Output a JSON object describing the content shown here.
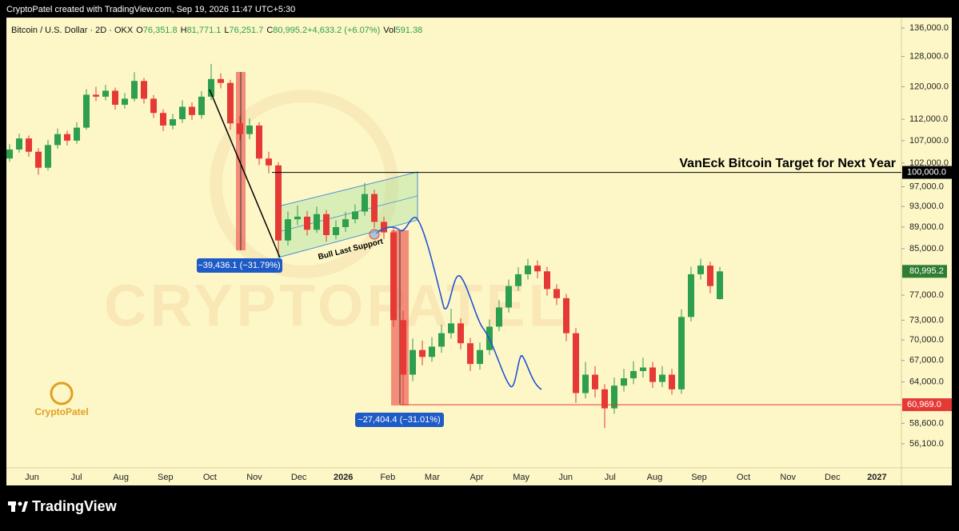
{
  "header": {
    "credit": "CryptoPatel created with TradingView.com, Sep 19, 2026 11:47 UTC+5:30",
    "brand": "TradingView"
  },
  "chart_data": {
    "type": "candlestick",
    "title": "Bitcoin / U.S. Dollar · 2D · OKX",
    "legend_fields": [
      {
        "key": "O",
        "value": "76,351.8"
      },
      {
        "key": "H",
        "value": "81,771.1"
      },
      {
        "key": "L",
        "value": "76,251.7"
      },
      {
        "key": "C",
        "value": "80,995.2"
      },
      {
        "key": "",
        "value": "+4,633.2 (+6.07%)"
      },
      {
        "key": "Vol",
        "value": "591.38"
      }
    ],
    "log_scale": true,
    "grid": false,
    "up_color": "#2e9e4f",
    "down_color": "#e53935",
    "ylim": [
      53300,
      139060
    ],
    "yticks": [
      {
        "value": 136000,
        "label": "136,000.0"
      },
      {
        "value": 128000,
        "label": "128,000.0"
      },
      {
        "value": 120000,
        "label": "120,000.0"
      },
      {
        "value": 112000,
        "label": "112,000.0"
      },
      {
        "value": 107000,
        "label": "107,000.0"
      },
      {
        "value": 102000,
        "label": "102,000.0"
      },
      {
        "value": 97000,
        "label": "97,000.0"
      },
      {
        "value": 93000,
        "label": "93,000.0"
      },
      {
        "value": 89000,
        "label": "89,000.0"
      },
      {
        "value": 85000,
        "label": "85,000.0"
      },
      {
        "value": 77000,
        "label": "77,000.0"
      },
      {
        "value": 73000,
        "label": "73,000.0"
      },
      {
        "value": 70000,
        "label": "70,000.0"
      },
      {
        "value": 67000,
        "label": "67,000.0"
      },
      {
        "value": 64000,
        "label": "64,000.0"
      },
      {
        "value": 58600,
        "label": "58,600.0"
      },
      {
        "value": 56100,
        "label": "56,100.0"
      }
    ],
    "categories": [
      "Jun",
      "Jul",
      "Aug",
      "Sep",
      "Oct",
      "Nov",
      "Dec",
      "2026",
      "Feb",
      "Mar",
      "Apr",
      "May",
      "Jun",
      "Jul",
      "Aug",
      "Sep",
      "Oct",
      "Nov",
      "Dec",
      "2027"
    ],
    "candles": [
      [
        103000,
        106200,
        102300,
        105000
      ],
      [
        105000,
        108600,
        104300,
        107500
      ],
      [
        107500,
        108200,
        103400,
        104500
      ],
      [
        104500,
        105300,
        99500,
        101000
      ],
      [
        101000,
        107200,
        100400,
        106000
      ],
      [
        106000,
        109800,
        105200,
        108500
      ],
      [
        108500,
        109300,
        105900,
        107000
      ],
      [
        107000,
        111300,
        106300,
        110000
      ],
      [
        110000,
        119400,
        109500,
        118000
      ],
      [
        118000,
        120000,
        116400,
        117500
      ],
      [
        117500,
        120500,
        116600,
        119000
      ],
      [
        119000,
        119800,
        114300,
        115500
      ],
      [
        115500,
        118400,
        114600,
        117000
      ],
      [
        117000,
        123800,
        116300,
        121500
      ],
      [
        121500,
        122300,
        115800,
        117000
      ],
      [
        117000,
        117900,
        112300,
        113500
      ],
      [
        113500,
        114400,
        109200,
        110500
      ],
      [
        110500,
        113300,
        109600,
        112000
      ],
      [
        112000,
        116600,
        111100,
        115000
      ],
      [
        115000,
        116100,
        111800,
        113000
      ],
      [
        113000,
        118900,
        112100,
        117500
      ],
      [
        117500,
        126000,
        116600,
        122000
      ],
      [
        122000,
        123500,
        119600,
        121000
      ],
      [
        121000,
        121800,
        109500,
        111000
      ],
      [
        111000,
        112700,
        107000,
        108500
      ],
      [
        108500,
        112200,
        107300,
        110500
      ],
      [
        110500,
        111300,
        101600,
        103000
      ],
      [
        103000,
        104500,
        99800,
        101500
      ],
      [
        101500,
        102200,
        83800,
        86500
      ],
      [
        86500,
        92000,
        85600,
        90500
      ],
      [
        90500,
        93200,
        89400,
        91000
      ],
      [
        91000,
        92100,
        87400,
        88500
      ],
      [
        88500,
        93000,
        87900,
        91500
      ],
      [
        91500,
        92300,
        86300,
        87500
      ],
      [
        87500,
        90300,
        86700,
        89000
      ],
      [
        89000,
        91900,
        88100,
        90500
      ],
      [
        90500,
        93400,
        89700,
        92000
      ],
      [
        92000,
        97800,
        91200,
        95500
      ],
      [
        95500,
        96400,
        88900,
        90000
      ],
      [
        90000,
        91000,
        86800,
        88000
      ],
      [
        88000,
        88800,
        72000,
        73000
      ],
      [
        73000,
        74500,
        60900,
        65000
      ],
      [
        65000,
        70200,
        64100,
        68500
      ],
      [
        68500,
        69900,
        66300,
        67500
      ],
      [
        67500,
        70400,
        66800,
        69000
      ],
      [
        69000,
        72300,
        68100,
        71000
      ],
      [
        71000,
        74800,
        70200,
        72500
      ],
      [
        72500,
        73300,
        68600,
        69500
      ],
      [
        69500,
        70300,
        65500,
        66500
      ],
      [
        66500,
        69600,
        65700,
        68500
      ],
      [
        68500,
        73100,
        67800,
        72000
      ],
      [
        72000,
        76200,
        71300,
        75000
      ],
      [
        75000,
        79600,
        74200,
        78500
      ],
      [
        78500,
        81700,
        77700,
        80500
      ],
      [
        80500,
        83200,
        79600,
        82000
      ],
      [
        82000,
        82900,
        79800,
        81000
      ],
      [
        81000,
        81800,
        76900,
        78000
      ],
      [
        78000,
        78800,
        75400,
        76500
      ],
      [
        76500,
        77200,
        69800,
        71000
      ],
      [
        71000,
        71800,
        61200,
        62500
      ],
      [
        62500,
        66800,
        61800,
        65000
      ],
      [
        65000,
        66200,
        61900,
        63000
      ],
      [
        63000,
        63700,
        58000,
        60500
      ],
      [
        60500,
        64600,
        59800,
        63500
      ],
      [
        63500,
        65800,
        62700,
        64500
      ],
      [
        64500,
        66900,
        63700,
        65500
      ],
      [
        65500,
        67400,
        64600,
        66000
      ],
      [
        66000,
        66800,
        63200,
        64000
      ],
      [
        64000,
        66200,
        63300,
        65000
      ],
      [
        65000,
        65800,
        62300,
        63000
      ],
      [
        63000,
        74700,
        62400,
        73500
      ],
      [
        73500,
        81800,
        72800,
        80500
      ],
      [
        80500,
        83200,
        79600,
        82000
      ],
      [
        82000,
        82700,
        77300,
        78500
      ],
      [
        76351.8,
        81771.1,
        76251.7,
        80995.2
      ]
    ],
    "price_lines": [
      {
        "value": 100000,
        "label": "100,000.0",
        "color": "#000000"
      },
      {
        "value": 60969,
        "label": "60,969.0",
        "color": "#e53935"
      }
    ],
    "last_price": {
      "value": 80995.2,
      "label": "80,995.2",
      "color": "#2e7d32"
    },
    "annotations": {
      "target": "VanEck Bitcoin Target for Next Year",
      "support": "Bull Last Support",
      "drop_1": "−39,436.1 (−31.79%)",
      "drop_2": "−27,404.4 (−31.01%)",
      "logo": "CryptoPatel",
      "watermark": "CRYPTOPATEL"
    }
  }
}
